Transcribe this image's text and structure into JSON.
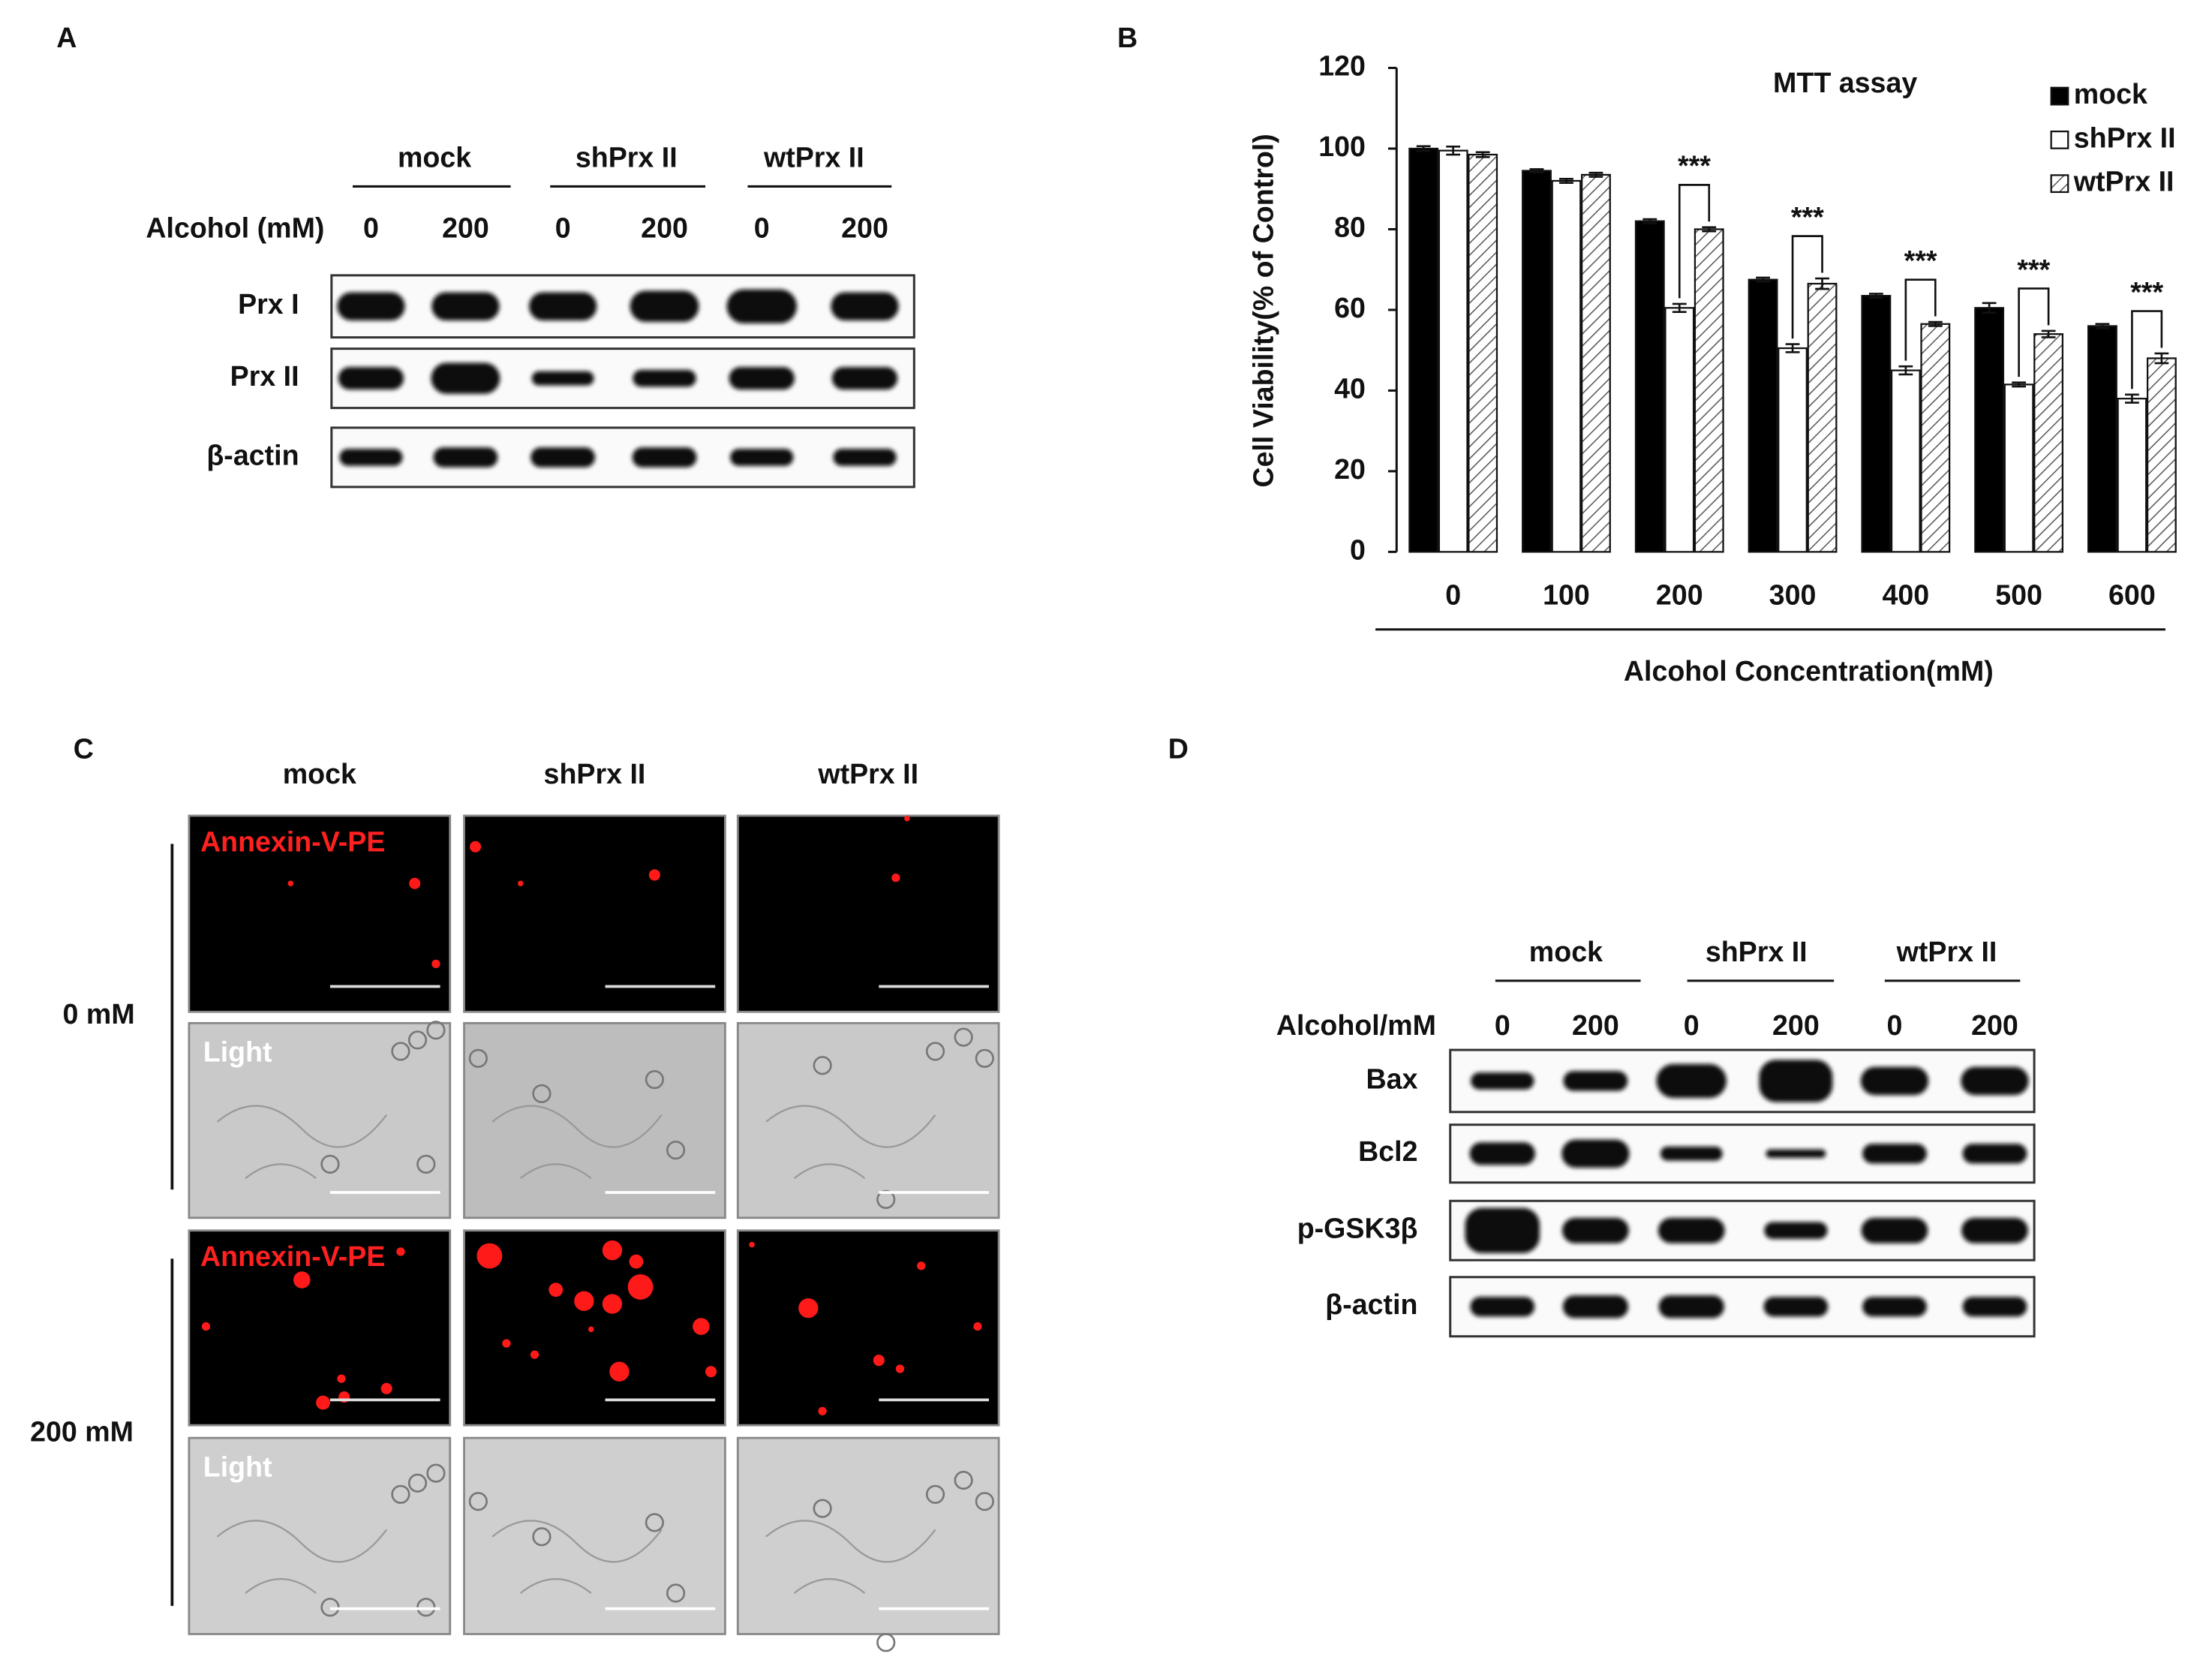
{
  "panel_a": {
    "label": "A",
    "groups": [
      "mock",
      "shPrx II",
      "wtPrx II"
    ],
    "condition_label": "Alcohol (mM)",
    "lanes": [
      "0",
      "200",
      "0",
      "200",
      "0",
      "200"
    ],
    "blots": [
      "Prx I",
      "Prx II",
      "β-actin"
    ]
  },
  "chart_data": {
    "type": "bar",
    "panel_label": "B",
    "title": "MTT assay",
    "x_label": "Alcohol Concentration(mM)",
    "y_label": "Cell Viability(% of Control)",
    "categories": [
      "0",
      "100",
      "200",
      "300",
      "400",
      "500",
      "600"
    ],
    "series": [
      {
        "name": "mock",
        "color": "#000000",
        "values": [
          100,
          94.5,
          82,
          67.5,
          63.5,
          60.5,
          56
        ],
        "errors": [
          0.6,
          0.4,
          0.5,
          0.5,
          0.5,
          1.2,
          0.5
        ]
      },
      {
        "name": "shPrx II",
        "color": "#ffffff",
        "values": [
          99.5,
          92,
          60.5,
          50.5,
          45,
          41.5,
          38
        ],
        "errors": [
          1,
          0.5,
          1,
          1,
          1,
          0.5,
          1
        ]
      },
      {
        "name": "wtPrx II",
        "color": "#ffffff",
        "pattern": "hatch",
        "values": [
          98.5,
          93.5,
          80,
          66.5,
          56.5,
          54,
          48
        ],
        "errors": [
          0.6,
          0.5,
          0.5,
          1.3,
          0.5,
          0.8,
          1.2
        ]
      }
    ],
    "significance": [
      null,
      null,
      "***",
      "***",
      "***",
      "***",
      "***"
    ],
    "ylim": [
      0,
      120
    ],
    "yticks": [
      0,
      20,
      40,
      60,
      80,
      100,
      120
    ],
    "grid": false,
    "legend": "top-right"
  },
  "panel_c": {
    "label": "C",
    "columns": [
      "mock",
      "shPrx II",
      "wtPrx II"
    ],
    "rows": [
      {
        "label": "0 mM",
        "fluorescence_label": "Annexin-V-PE",
        "light_label": "Light"
      },
      {
        "label": "200 mM",
        "fluorescence_label": "Annexin-V-PE",
        "light_label": "Light"
      }
    ]
  },
  "panel_d": {
    "label": "D",
    "groups": [
      "mock",
      "shPrx II",
      "wtPrx II"
    ],
    "condition_label": "Alcohol/mM",
    "lanes": [
      "0",
      "200",
      "0",
      "200",
      "0",
      "200"
    ],
    "blots": [
      "Bax",
      "Bcl2",
      "p-GSK3β",
      "β-actin"
    ]
  }
}
